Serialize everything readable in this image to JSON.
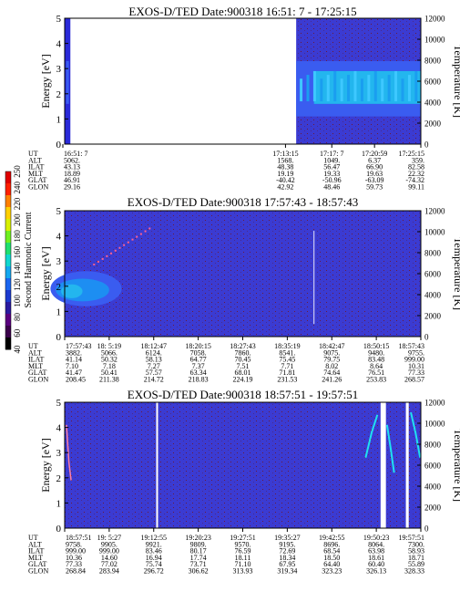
{
  "colorbar": {
    "label": "Second Harmonic Current",
    "ticks": [
      "40",
      "60",
      "80",
      "100",
      "120",
      "140",
      "160",
      "180",
      "200",
      "220",
      "240",
      "250"
    ],
    "colors": [
      "#000000",
      "#3a004a",
      "#5a0080",
      "#2a1aa0",
      "#1c3ad0",
      "#1a66f0",
      "#14a8f0",
      "#10d8d0",
      "#20e070",
      "#70f020",
      "#d8f000",
      "#ffd000",
      "#ff8000",
      "#ff2000",
      "#e00000"
    ]
  },
  "colors": {
    "background": "#3b3bd2",
    "mid": "#3a5cf0",
    "high": "#23b6ee",
    "noise": "#6a1a3a"
  },
  "chart_data": [
    {
      "type": "heatmap",
      "title": "EXOS-D/TED   Date:900318   16:51: 7 - 17:25:15",
      "ylabel": "Energy [eV]",
      "y2label": "Temperature [K]",
      "ylim": [
        0,
        5
      ],
      "y2lim": [
        0,
        12000
      ],
      "yticks": [
        "0",
        "1",
        "2",
        "3",
        "4",
        "5"
      ],
      "y2ticks": [
        "0",
        "2000",
        "4000",
        "6000",
        "8000",
        "10000",
        "12000"
      ],
      "row_labels": [
        "UT",
        "ALT",
        "ILAT",
        "MLT",
        "GLAT",
        "GLON"
      ],
      "columns": [
        [
          "16:51: 7",
          "5062.",
          "43.13",
          "18.89",
          "46.91",
          "29.16"
        ],
        [
          "17:13:15",
          "1568.",
          "48.38",
          "19.19",
          "-40.42",
          "42.92"
        ],
        [
          "17:17: 7",
          "1049.",
          "56.47",
          "19.33",
          "-50.96",
          "48.46"
        ],
        [
          "17:20:59",
          "6.37",
          "66.90",
          "19.63",
          "-63.09",
          "59.73"
        ],
        [
          "17:25:15",
          "359.",
          "82.58",
          "22.32",
          "-74.32",
          "99.11"
        ]
      ],
      "data_gap": [
        "16:51:7",
        "17:13:15"
      ]
    },
    {
      "type": "heatmap",
      "title": "EXOS-D/TED   Date:900318   17:57:43 - 18:57:43",
      "ylabel": "Energy [eV]",
      "y2label": "Temperature [K]",
      "ylim": [
        0,
        5
      ],
      "y2lim": [
        0,
        12000
      ],
      "yticks": [
        "0",
        "1",
        "2",
        "3",
        "4",
        "5"
      ],
      "y2ticks": [
        "0",
        "2000",
        "4000",
        "6000",
        "8000",
        "10000",
        "12000"
      ],
      "row_labels": [
        "UT",
        "ALT",
        "ILAT",
        "MLT",
        "GLAT",
        "GLON"
      ],
      "columns": [
        [
          "17:57:43",
          "3882.",
          "41.14",
          "7.10",
          "41.47",
          "208.45"
        ],
        [
          "18: 5:19",
          "5066.",
          "50.32",
          "7.18",
          "50.41",
          "211.38"
        ],
        [
          "18:12:47",
          "6124.",
          "58.13",
          "7.27",
          "57.57",
          "214.72"
        ],
        [
          "18:20:15",
          "7058.",
          "64.77",
          "7.37",
          "63.34",
          "218.83"
        ],
        [
          "18:27:43",
          "7860.",
          "70.45",
          "7.51",
          "68.01",
          "224.19"
        ],
        [
          "18:35:19",
          "8541.",
          "75.45",
          "7.71",
          "71.81",
          "231.53"
        ],
        [
          "18:42:47",
          "9075.",
          "79.75",
          "8.02",
          "74.64",
          "241.26"
        ],
        [
          "18:50:15",
          "9480.",
          "83.48",
          "8.64",
          "76.51",
          "253.83"
        ],
        [
          "18:57:43",
          "9755.",
          "999.00",
          "10.31",
          "77.33",
          "268.57"
        ]
      ]
    },
    {
      "type": "heatmap",
      "title": "EXOS-D/TED   Date:900318   18:57:51 - 19:57:51",
      "ylabel": "Energy [eV]",
      "y2label": "Temperature [K]",
      "ylim": [
        0,
        5
      ],
      "y2lim": [
        0,
        12000
      ],
      "yticks": [
        "0",
        "1",
        "2",
        "3",
        "4",
        "5"
      ],
      "y2ticks": [
        "0",
        "2000",
        "4000",
        "6000",
        "8000",
        "10000",
        "12000"
      ],
      "row_labels": [
        "UT",
        "ALT",
        "ILAT",
        "MLT",
        "GLAT",
        "GLON"
      ],
      "columns": [
        [
          "18:57:51",
          "9758.",
          "999.00",
          "10.36",
          "77.33",
          "268.84"
        ],
        [
          "19: 5:27",
          "9905.",
          "999.00",
          "14.60",
          "77.02",
          "283.94"
        ],
        [
          "19:12:55",
          "9921.",
          "83.46",
          "16.94",
          "75.74",
          "296.72"
        ],
        [
          "19:20:23",
          "9809.",
          "80.17",
          "17.74",
          "73.71",
          "306.62"
        ],
        [
          "19:27:51",
          "9570.",
          "76.59",
          "18.11",
          "71.10",
          "313.93"
        ],
        [
          "19:35:27",
          "9195.",
          "72.69",
          "18.34",
          "67.95",
          "319.34"
        ],
        [
          "19:42:55",
          "8696.",
          "68.54",
          "18.50",
          "64.40",
          "323.23"
        ],
        [
          "19:50:23",
          "8064.",
          "63.98",
          "18.61",
          "60.40",
          "326.13"
        ],
        [
          "19:57:51",
          "7300.",
          "58.93",
          "18.71",
          "55.89",
          "328.33"
        ]
      ]
    }
  ]
}
